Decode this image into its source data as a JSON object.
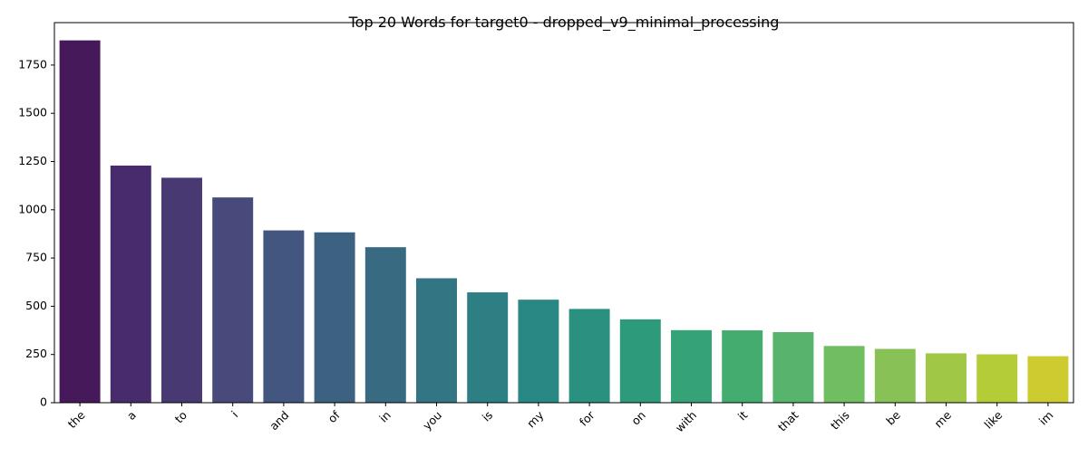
{
  "chart_data": {
    "type": "bar",
    "title": "Top 20 Words for target0 - dropped_v9_minimal_processing",
    "xlabel": "",
    "ylabel": "",
    "ylim": [
      0,
      1970
    ],
    "yticks": [
      "0",
      "250",
      "500",
      "750",
      "1000",
      "1250",
      "1500",
      "1750"
    ],
    "categories": [
      "the",
      "a",
      "to",
      "i",
      "and",
      "of",
      "in",
      "you",
      "is",
      "my",
      "for",
      "on",
      "with",
      "it",
      "that",
      "this",
      "be",
      "me",
      "like",
      "im"
    ],
    "values": [
      1878,
      1229,
      1166,
      1064,
      893,
      883,
      806,
      645,
      572,
      534,
      486,
      432,
      376,
      375,
      366,
      294,
      279,
      256,
      251,
      241
    ],
    "colors": [
      "#45195a",
      "#482b6c",
      "#493972",
      "#474a7a",
      "#42567f",
      "#3d6181",
      "#386b82",
      "#337583",
      "#2e7f84",
      "#2a8884",
      "#2a9180",
      "#2c9a7b",
      "#35a377",
      "#44ac6e",
      "#57b46c",
      "#70bd62",
      "#88c256",
      "#a0c846",
      "#b4cc38",
      "#cccc30"
    ],
    "grid": false,
    "legend": "none"
  }
}
